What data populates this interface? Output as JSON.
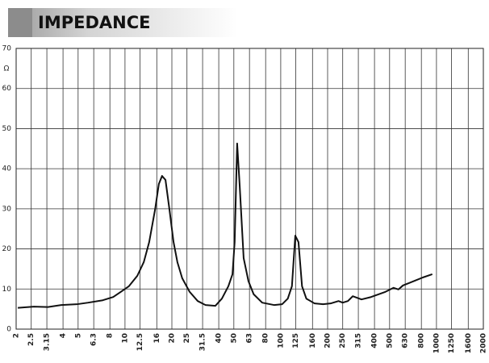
{
  "chart_data": {
    "type": "line",
    "title": "IMPEDANCE",
    "y_label": "Ω",
    "y_label_at": 65,
    "x": [
      2.05,
      2.6,
      3.2,
      3.9,
      4.9,
      5.8,
      7.2,
      8.4,
      9.4,
      10.6,
      12,
      13.2,
      14.3,
      15.6,
      16.5,
      17.3,
      18.2,
      19.3,
      20.5,
      21.7,
      23.3,
      26,
      29.3,
      32.9,
      38,
      41.9,
      46.1,
      49,
      50.6,
      52.5,
      54.5,
      57.8,
      62,
      67,
      76,
      91,
      102,
      111,
      118,
      124,
      130,
      137,
      146,
      165,
      187,
      209,
      235,
      250,
      270,
      290,
      330,
      380,
      470,
      530,
      570,
      610,
      730,
      820,
      940
    ],
    "values": [
      5.3,
      5.6,
      5.5,
      6,
      6.2,
      6.6,
      7.2,
      8,
      9.3,
      10.7,
      13.3,
      16.7,
      21.7,
      29.8,
      36.2,
      38.2,
      37.2,
      29.8,
      21.7,
      16.7,
      12.7,
      9.3,
      7,
      6,
      5.8,
      7.6,
      10.7,
      13.7,
      21.7,
      46.3,
      35.8,
      17.7,
      12,
      8.7,
      6.6,
      6,
      6.2,
      7.6,
      10.7,
      23.3,
      21.7,
      10.7,
      7.6,
      6.4,
      6.2,
      6.4,
      7,
      6.6,
      7,
      8.2,
      7.4,
      8,
      9.3,
      10.3,
      9.9,
      10.9,
      12.1,
      12.9,
      13.7
    ],
    "color": "#111111",
    "xscale": "log",
    "xlim": [
      2,
      2000
    ],
    "xticks": [
      2,
      2.5,
      3.15,
      4,
      5,
      6.3,
      8,
      10,
      12.5,
      16,
      20,
      25,
      31.5,
      40,
      50,
      63,
      80,
      100,
      125,
      160,
      200,
      250,
      315,
      400,
      500,
      630,
      800,
      1000,
      1250,
      1600,
      2000
    ],
    "ylim": [
      0,
      70
    ],
    "yticks": [
      0,
      10,
      20,
      30,
      40,
      50,
      60,
      70
    ],
    "grid": true
  }
}
